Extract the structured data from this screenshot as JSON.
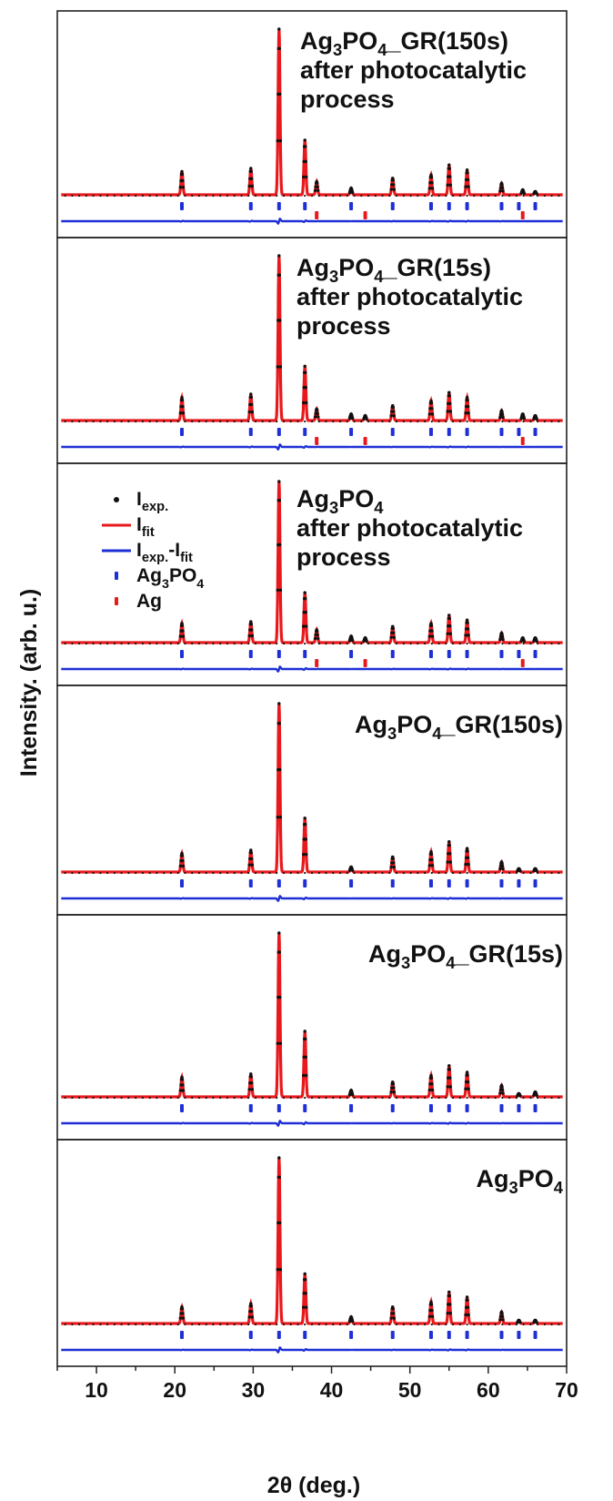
{
  "chart_data": {
    "type": "line",
    "xlabel": "2θ (deg.)",
    "ylabel": "Intensity. (arb. u.)",
    "xlim": [
      5,
      70
    ],
    "x_ticks": [
      10,
      20,
      30,
      40,
      50,
      60,
      70
    ],
    "y_tick_labels": false,
    "colors": {
      "experimental": "#111111",
      "fit": "#e8191c",
      "difference": "#1e2fd6",
      "ag3po4_ticks": "#1e2fd6",
      "ag_ticks": "#e8191c"
    },
    "legend": {
      "location": "upper-left of third panel",
      "entries": [
        {
          "label": "Iexp.",
          "marker": "black-dot"
        },
        {
          "label": "Ifit",
          "marker": "red-line"
        },
        {
          "label": "Iexp.-Ifit",
          "marker": "blue-line"
        },
        {
          "label": "Ag3PO4",
          "marker": "blue-tick"
        },
        {
          "label": "Ag",
          "marker": "red-tick"
        }
      ]
    },
    "bragg_positions": {
      "Ag3PO4": [
        20.9,
        29.7,
        33.3,
        36.6,
        42.5,
        47.8,
        52.7,
        55.0,
        57.3,
        61.7,
        63.9,
        66.0
      ],
      "Ag": [
        38.1,
        44.3,
        64.4
      ]
    },
    "panels": [
      {
        "label_lines": [
          "Ag3PO4_GR(150s)",
          "after photocatalytic",
          "process"
        ],
        "peaks": [
          [
            20.9,
            0.14
          ],
          [
            29.7,
            0.16
          ],
          [
            33.3,
            1.0
          ],
          [
            36.6,
            0.33
          ],
          [
            38.1,
            0.08
          ],
          [
            42.5,
            0.04
          ],
          [
            47.8,
            0.1
          ],
          [
            52.7,
            0.12
          ],
          [
            55.0,
            0.18
          ],
          [
            57.3,
            0.15
          ],
          [
            61.7,
            0.07
          ],
          [
            64.4,
            0.03
          ],
          [
            66.0,
            0.02
          ]
        ],
        "has_ag": true
      },
      {
        "label_lines": [
          "Ag3PO4_GR(15s)",
          "after photocatalytic",
          "process"
        ],
        "peaks": [
          [
            20.9,
            0.14
          ],
          [
            29.7,
            0.16
          ],
          [
            33.3,
            1.0
          ],
          [
            36.6,
            0.33
          ],
          [
            38.1,
            0.07
          ],
          [
            42.5,
            0.04
          ],
          [
            44.3,
            0.03
          ],
          [
            47.8,
            0.09
          ],
          [
            52.7,
            0.12
          ],
          [
            55.0,
            0.17
          ],
          [
            57.3,
            0.14
          ],
          [
            61.7,
            0.06
          ],
          [
            64.4,
            0.04
          ],
          [
            66.0,
            0.03
          ]
        ],
        "has_ag": true
      },
      {
        "label_lines": [
          "Ag3PO4",
          "after photocatalytic",
          "process"
        ],
        "peaks": [
          [
            20.9,
            0.12
          ],
          [
            29.7,
            0.13
          ],
          [
            33.3,
            1.0
          ],
          [
            36.6,
            0.31
          ],
          [
            38.1,
            0.08
          ],
          [
            42.5,
            0.04
          ],
          [
            44.3,
            0.03
          ],
          [
            47.8,
            0.1
          ],
          [
            52.7,
            0.12
          ],
          [
            55.0,
            0.17
          ],
          [
            57.3,
            0.14
          ],
          [
            61.7,
            0.06
          ],
          [
            64.4,
            0.03
          ],
          [
            66.0,
            0.03
          ]
        ],
        "has_ag": true
      },
      {
        "label_lines": [
          "Ag3PO4_GR(150s)"
        ],
        "peaks": [
          [
            20.9,
            0.11
          ],
          [
            29.7,
            0.13
          ],
          [
            33.3,
            1.0
          ],
          [
            36.6,
            0.32
          ],
          [
            42.5,
            0.03
          ],
          [
            47.8,
            0.09
          ],
          [
            52.7,
            0.12
          ],
          [
            55.0,
            0.18
          ],
          [
            57.3,
            0.14
          ],
          [
            61.7,
            0.06
          ],
          [
            63.9,
            0.02
          ],
          [
            66.0,
            0.02
          ]
        ],
        "has_ag": false
      },
      {
        "label_lines": [
          "Ag3PO4_GR(15s)"
        ],
        "peaks": [
          [
            20.9,
            0.12
          ],
          [
            29.7,
            0.14
          ],
          [
            33.3,
            1.0
          ],
          [
            36.6,
            0.4
          ],
          [
            42.5,
            0.04
          ],
          [
            47.8,
            0.09
          ],
          [
            52.7,
            0.13
          ],
          [
            55.0,
            0.19
          ],
          [
            57.3,
            0.15
          ],
          [
            61.7,
            0.07
          ],
          [
            63.9,
            0.02
          ],
          [
            66.0,
            0.03
          ]
        ],
        "has_ag": false
      },
      {
        "label_lines": [
          "Ag3PO4"
        ],
        "peaks": [
          [
            20.9,
            0.1
          ],
          [
            29.7,
            0.12
          ],
          [
            33.3,
            1.0
          ],
          [
            36.6,
            0.3
          ],
          [
            42.5,
            0.04
          ],
          [
            47.8,
            0.1
          ],
          [
            52.7,
            0.13
          ],
          [
            55.0,
            0.19
          ],
          [
            57.3,
            0.16
          ],
          [
            61.7,
            0.07
          ],
          [
            63.9,
            0.02
          ],
          [
            66.0,
            0.02
          ]
        ],
        "has_ag": false
      }
    ]
  }
}
